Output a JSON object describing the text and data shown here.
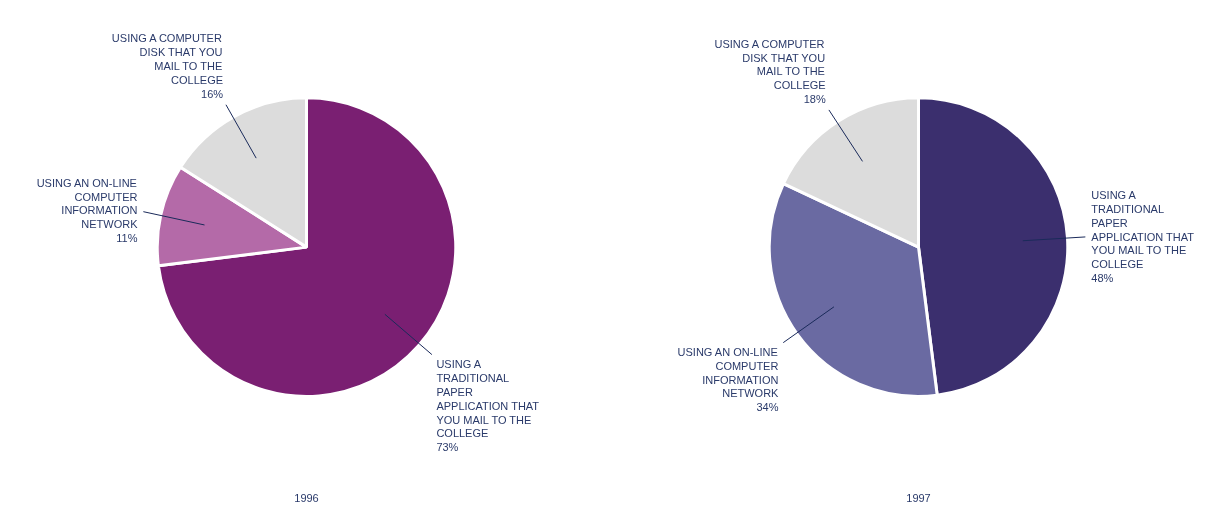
{
  "chart_data": [
    {
      "type": "pie",
      "title": "1996",
      "categories": [
        "USING A TRADITIONAL PAPER APPLICATION THAT YOU MAIL TO THE COLLEGE",
        "USING AN ON-LINE COMPUTER INFORMATION NETWORK",
        "USING A COMPUTER DISK THAT YOU MAIL TO THE COLLEGE"
      ],
      "values": [
        73,
        11,
        16
      ],
      "value_labels": [
        "73%",
        "11%",
        "16%"
      ],
      "colors": [
        "#7a1f72",
        "#b46aa8",
        "#dcdcdc"
      ]
    },
    {
      "type": "pie",
      "title": "1997",
      "categories": [
        "USING A TRADITIONAL PAPER APPLICATION THAT YOU MAIL TO THE COLLEGE",
        "USING AN ON-LINE COMPUTER INFORMATION NETWORK",
        "USING A COMPUTER DISK THAT YOU MAIL TO THE COLLEGE"
      ],
      "values": [
        48,
        34,
        18
      ],
      "value_labels": [
        "48%",
        "34%",
        "18%"
      ],
      "colors": [
        "#3b2f6e",
        "#6a6aa2",
        "#dcdcdc"
      ]
    }
  ]
}
